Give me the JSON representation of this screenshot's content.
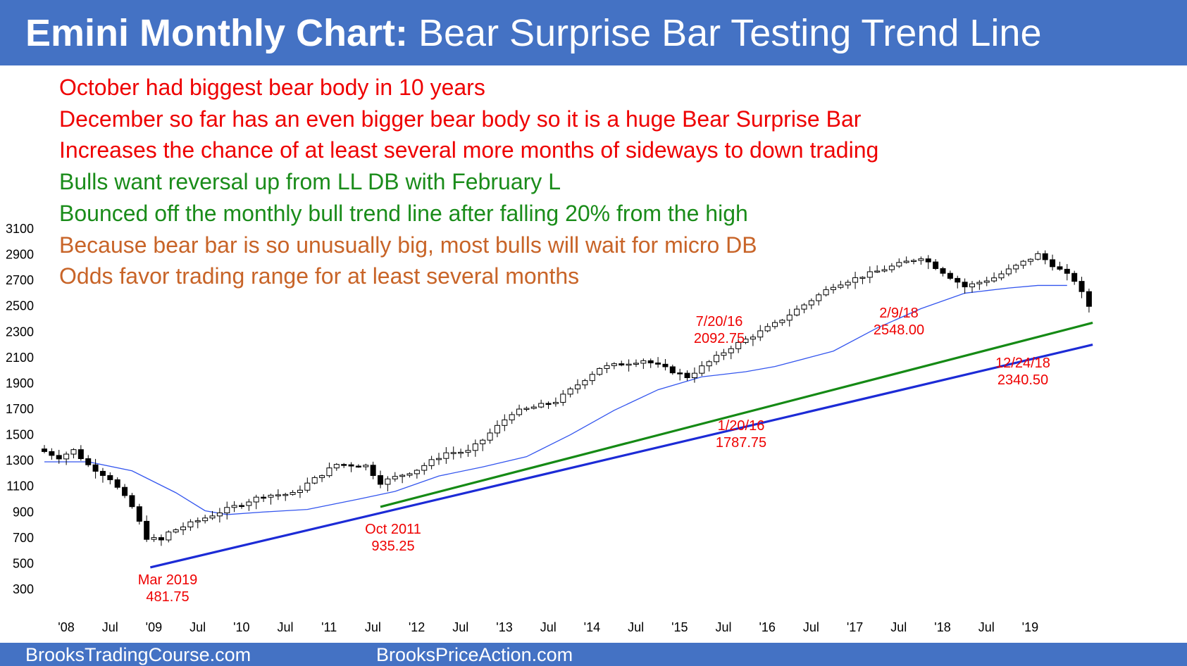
{
  "header": {
    "title_bold": "Emini Monthly Chart:",
    "title_rest": " Bear Surprise Bar Testing Trend Line",
    "background": "#4472c4"
  },
  "notes": [
    {
      "text": "October had biggest bear body in 10 years",
      "color": "#ee0000"
    },
    {
      "text": "December so far has an even bigger bear body so it is a huge Bear Surprise Bar",
      "color": "#ee0000"
    },
    {
      "text": "Increases the chance of at least several more months of sideways to down trading",
      "color": "#ee0000"
    },
    {
      "text": "Bulls want reversal up from LL DB with February L",
      "color": "#1a8c1a"
    },
    {
      "text": "Bounced off the monthly bull trend line after falling 20% from the high",
      "color": "#1a8c1a"
    },
    {
      "text": "Because bear bar is so unusually big, most bulls will wait for micro DB",
      "color": "#c86428"
    },
    {
      "text": "Odds favor trading range for at least several months",
      "color": "#c86428"
    }
  ],
  "footer": {
    "left": "BrooksTradingCourse.com",
    "right": "BrooksPriceAction.com"
  },
  "chart_data": {
    "type": "candlestick",
    "y_axis": {
      "min": 300,
      "max": 3100,
      "ticks": [
        "300",
        "500",
        "700",
        "900",
        "1100",
        "1300",
        "1500",
        "1700",
        "1900",
        "2100",
        "2300",
        "2500",
        "2700",
        "2900",
        "3100"
      ],
      "grid": false
    },
    "x_axis": {
      "ticks": [
        "'08",
        "Jul",
        "'09",
        "Jul",
        "'10",
        "Jul",
        "'11",
        "Jul",
        "'12",
        "Jul",
        "'13",
        "Jul",
        "'14",
        "Jul",
        "'15",
        "Jul",
        "'16",
        "Jul",
        "'17",
        "Jul",
        "'18",
        "Jul",
        "'19"
      ]
    },
    "series_note": "monthly candles with 20-period moving average (blue); bull trend lines in blue and green",
    "months": [
      {
        "t": 0.0,
        "c": 1370
      },
      {
        "t": 2,
        "c": 1325
      },
      {
        "t": 4,
        "c": 1380
      },
      {
        "t": 6,
        "c": 1265
      },
      {
        "t": 9,
        "c": 1160
      },
      {
        "t": 12,
        "c": 940
      },
      {
        "t": 14,
        "c": 700
      },
      {
        "t": 16,
        "c": 680
      },
      {
        "t": 17,
        "c": 740
      },
      {
        "t": 20,
        "c": 810
      },
      {
        "t": 24,
        "c": 900
      },
      {
        "t": 30,
        "c": 1030
      },
      {
        "t": 34,
        "c": 1040
      },
      {
        "t": 36,
        "c": 1120
      },
      {
        "t": 40,
        "c": 1270
      },
      {
        "t": 44,
        "c": 1260
      },
      {
        "t": 46,
        "c": 1130
      },
      {
        "t": 51,
        "c": 1230
      },
      {
        "t": 55,
        "c": 1360
      },
      {
        "t": 58,
        "c": 1370
      },
      {
        "t": 60,
        "c": 1460
      },
      {
        "t": 64,
        "c": 1670
      },
      {
        "t": 70,
        "c": 1760
      },
      {
        "t": 76,
        "c": 2020
      },
      {
        "t": 82,
        "c": 2080
      },
      {
        "t": 88,
        "c": 1950
      },
      {
        "t": 94,
        "c": 2180
      },
      {
        "t": 100,
        "c": 2360
      },
      {
        "t": 108,
        "c": 2660
      },
      {
        "t": 120,
        "c": 2880
      },
      {
        "t": 126,
        "c": 2650
      },
      {
        "t": 130,
        "c": 2720
      },
      {
        "t": 136,
        "c": 2900
      },
      {
        "t": 141,
        "c": 2700
      },
      {
        "t": 143,
        "c": 2500
      }
    ],
    "ma20": [
      {
        "t": 0,
        "v": 1290
      },
      {
        "t": 6,
        "v": 1290
      },
      {
        "t": 12,
        "v": 1220
      },
      {
        "t": 18,
        "v": 1050
      },
      {
        "t": 22,
        "v": 910
      },
      {
        "t": 25,
        "v": 880
      },
      {
        "t": 30,
        "v": 900
      },
      {
        "t": 36,
        "v": 920
      },
      {
        "t": 43,
        "v": 1000
      },
      {
        "t": 48,
        "v": 1060
      },
      {
        "t": 54,
        "v": 1180
      },
      {
        "t": 60,
        "v": 1250
      },
      {
        "t": 66,
        "v": 1330
      },
      {
        "t": 72,
        "v": 1500
      },
      {
        "t": 78,
        "v": 1690
      },
      {
        "t": 84,
        "v": 1850
      },
      {
        "t": 90,
        "v": 1950
      },
      {
        "t": 96,
        "v": 1990
      },
      {
        "t": 100,
        "v": 2030
      },
      {
        "t": 108,
        "v": 2150
      },
      {
        "t": 114,
        "v": 2330
      },
      {
        "t": 120,
        "v": 2480
      },
      {
        "t": 126,
        "v": 2600
      },
      {
        "t": 132,
        "v": 2640
      },
      {
        "t": 136,
        "v": 2660
      },
      {
        "t": 140,
        "v": 2660
      }
    ],
    "trend_lines": [
      {
        "name": "blue",
        "color": "#1c2bd6",
        "from": {
          "t": 14.5,
          "v": 470
        },
        "to": {
          "t": 143.5,
          "v": 2200
        }
      },
      {
        "name": "green",
        "color": "#158a15",
        "from": {
          "t": 46,
          "v": 940
        },
        "to": {
          "t": 143.5,
          "v": 2370
        }
      }
    ],
    "annotations": [
      {
        "lines": [
          "Mar 2019",
          "481.75"
        ]
      },
      {
        "lines": [
          "Oct 2011",
          "935.25"
        ]
      },
      {
        "lines": [
          "7/20/16",
          "2092.75"
        ]
      },
      {
        "lines": [
          "1/20/16",
          "1787.75"
        ]
      },
      {
        "lines": [
          "2/9/18",
          "2548.00"
        ]
      },
      {
        "lines": [
          "12/24/18",
          "2340.50"
        ]
      }
    ]
  }
}
